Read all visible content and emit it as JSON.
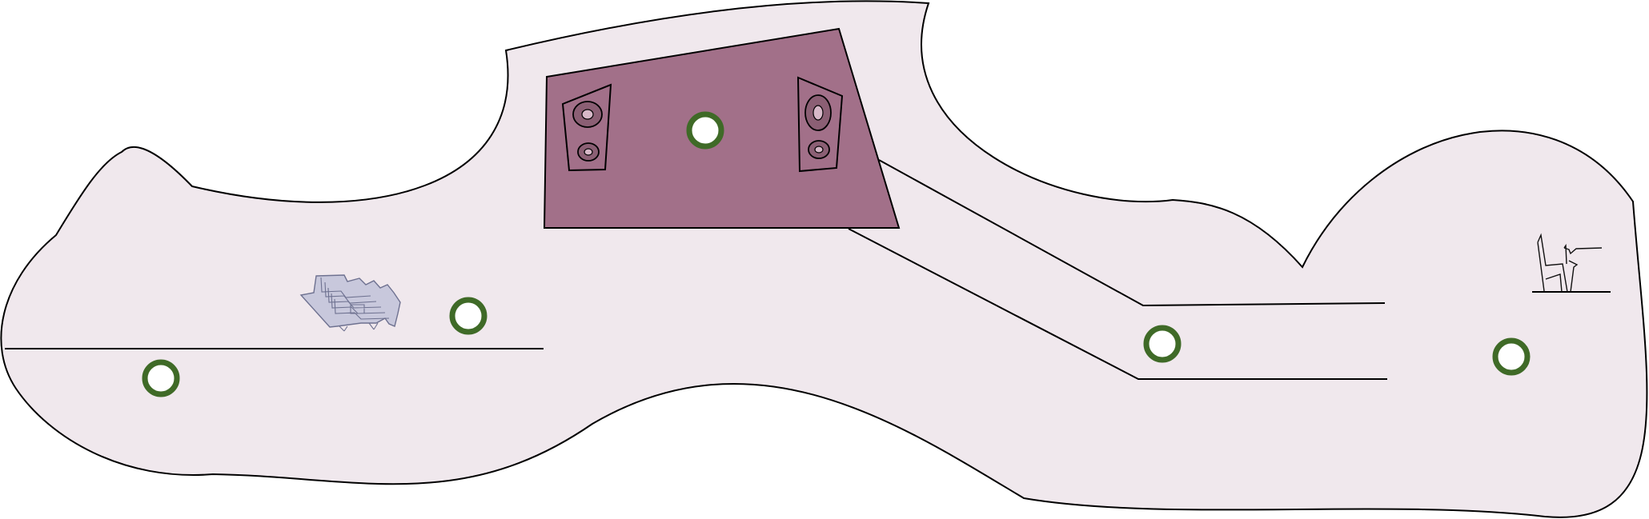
{
  "diagram": {
    "colors": {
      "background": "#ffffff",
      "venue_fill": "#f0e8ed",
      "stage_fill": "#a27089",
      "marker_stroke": "#3f6a27",
      "marker_fill": "#ffffff",
      "line_color": "#000000",
      "stairs_fill": "#c8c8dc"
    },
    "icons": {
      "stage_speaker_left": "speaker-icon",
      "stage_speaker_right": "speaker-icon",
      "stairs": "stairs-icon",
      "seating": "chair-icon"
    },
    "markers": [
      {
        "name": "marker-left-lower"
      },
      {
        "name": "marker-left-upper"
      },
      {
        "name": "marker-stage"
      },
      {
        "name": "marker-right-corridor"
      },
      {
        "name": "marker-right-room"
      }
    ]
  }
}
